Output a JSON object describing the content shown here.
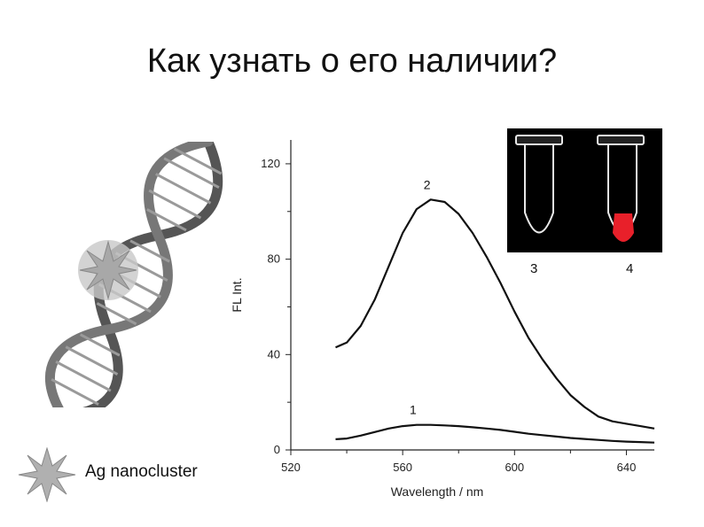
{
  "slide": {
    "title": "Как узнать о его наличии?"
  },
  "legend": {
    "label": "Ag nanocluster",
    "icon": "silver-nanocluster-star-icon"
  },
  "photo": {
    "tube_labels": [
      "3",
      "4"
    ],
    "fluorescence_color": "#e8202a"
  },
  "chart_data": {
    "type": "line",
    "xlabel": "Wavelength / nm",
    "ylabel": "FL Int.",
    "xlim": [
      520,
      650
    ],
    "ylim": [
      0,
      130
    ],
    "xticks": [
      "520",
      "560",
      "600",
      "640"
    ],
    "yticks": [
      "0",
      "40",
      "80",
      "120"
    ],
    "x": [
      536,
      540,
      545,
      550,
      555,
      560,
      565,
      570,
      575,
      580,
      585,
      590,
      595,
      600,
      605,
      610,
      615,
      620,
      625,
      630,
      635,
      640,
      645,
      650
    ],
    "series": [
      {
        "name": "2",
        "values": [
          43,
          45,
          52,
          63,
          77,
          91,
          101,
          105,
          104,
          99,
          91,
          81,
          70,
          58,
          47,
          38,
          30,
          23,
          18,
          14,
          12,
          11,
          10,
          9
        ]
      },
      {
        "name": "1",
        "values": [
          4.5,
          4.8,
          6,
          7.5,
          9,
          10,
          10.5,
          10.5,
          10.3,
          10,
          9.5,
          9,
          8.4,
          7.6,
          6.8,
          6.2,
          5.6,
          5,
          4.6,
          4.2,
          3.8,
          3.5,
          3.3,
          3.1
        ]
      }
    ]
  }
}
